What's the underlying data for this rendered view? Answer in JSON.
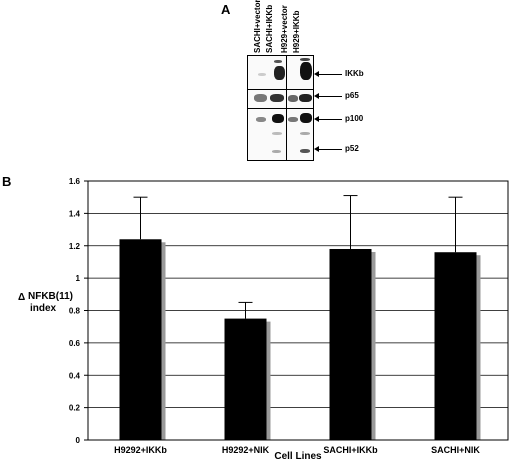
{
  "panel_a": {
    "letter": "A",
    "lanes": [
      "SACHI+vector",
      "SACHI+IKKb",
      "H929+vector",
      "H929+IKKb"
    ],
    "band_labels": [
      "IKKb",
      "p65",
      "p100",
      "p52"
    ]
  },
  "panel_b": {
    "letter": "B"
  },
  "chart_data": {
    "type": "bar",
    "title": "",
    "xlabel": "Cell Lines",
    "ylabel_symbol": "Δ",
    "ylabel_line1": "NFKB(11)",
    "ylabel_line2": "index",
    "categories": [
      "H9292+IKKb",
      "H9292+NIK",
      "SACHI+IKKb",
      "SACHI+NIK"
    ],
    "values": [
      1.24,
      0.75,
      1.18,
      1.16
    ],
    "error_upper": [
      1.5,
      0.85,
      1.51,
      1.5
    ],
    "ylim": [
      0,
      1.6
    ],
    "yticks": [
      "0",
      "0.2",
      "0.4",
      "0.6",
      "0.8",
      "1",
      "1.2",
      "1.4",
      "1.6"
    ],
    "grid": true,
    "bar_color": "#000000",
    "shadow_color": "#9a9a9a"
  }
}
